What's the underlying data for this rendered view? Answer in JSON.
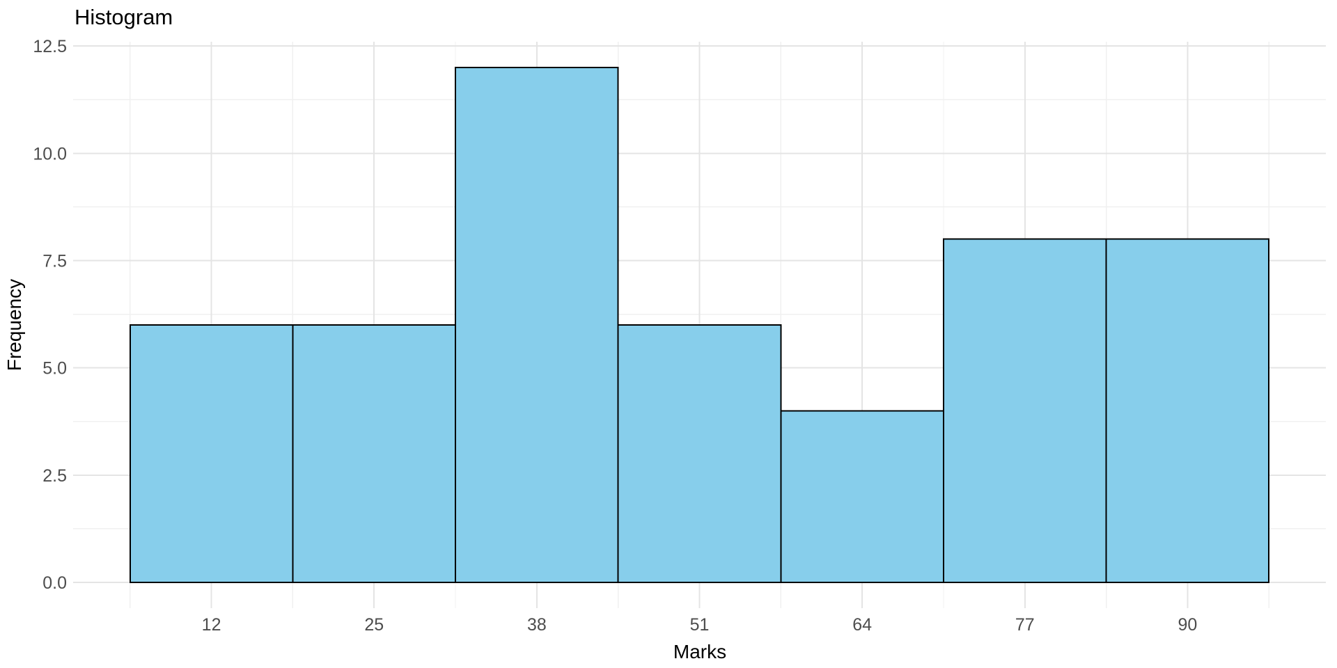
{
  "chart": {
    "title": "Histogram",
    "x_axis_title": "Marks",
    "y_axis_title": "Frequency"
  },
  "chart_data": {
    "type": "histogram",
    "title": "Histogram",
    "xlabel": "Marks",
    "ylabel": "Frequency",
    "bin_width": 13,
    "bin_edges": [
      5.5,
      18.5,
      31.5,
      44.5,
      57.5,
      70.5,
      83.5,
      96.5
    ],
    "bin_centers": [
      12,
      25,
      38,
      51,
      64,
      77,
      90
    ],
    "frequencies": [
      6,
      6,
      12,
      6,
      4,
      8,
      8
    ],
    "x_tick_labels": [
      "12",
      "25",
      "38",
      "51",
      "64",
      "77",
      "90"
    ],
    "y_ticks": [
      0,
      2.5,
      5,
      7.5,
      10,
      12.5
    ],
    "y_tick_labels": [
      "0.0",
      "2.5",
      "5.0",
      "7.5",
      "10.0",
      "12.5"
    ],
    "x_data_range": [
      5.5,
      96.5
    ],
    "y_data_range": [
      0,
      12
    ],
    "axis_expansion": 0.05,
    "grid": "major+minor",
    "legend": "none",
    "colors": {
      "bar_fill": "#87CEEB",
      "bar_stroke": "#000000",
      "grid_major": "#E4E4E4",
      "grid_minor": "#F0F0F0",
      "tick_label_text": "#4D4D4D",
      "title_text": "#000000",
      "background": "#FFFFFF"
    }
  }
}
